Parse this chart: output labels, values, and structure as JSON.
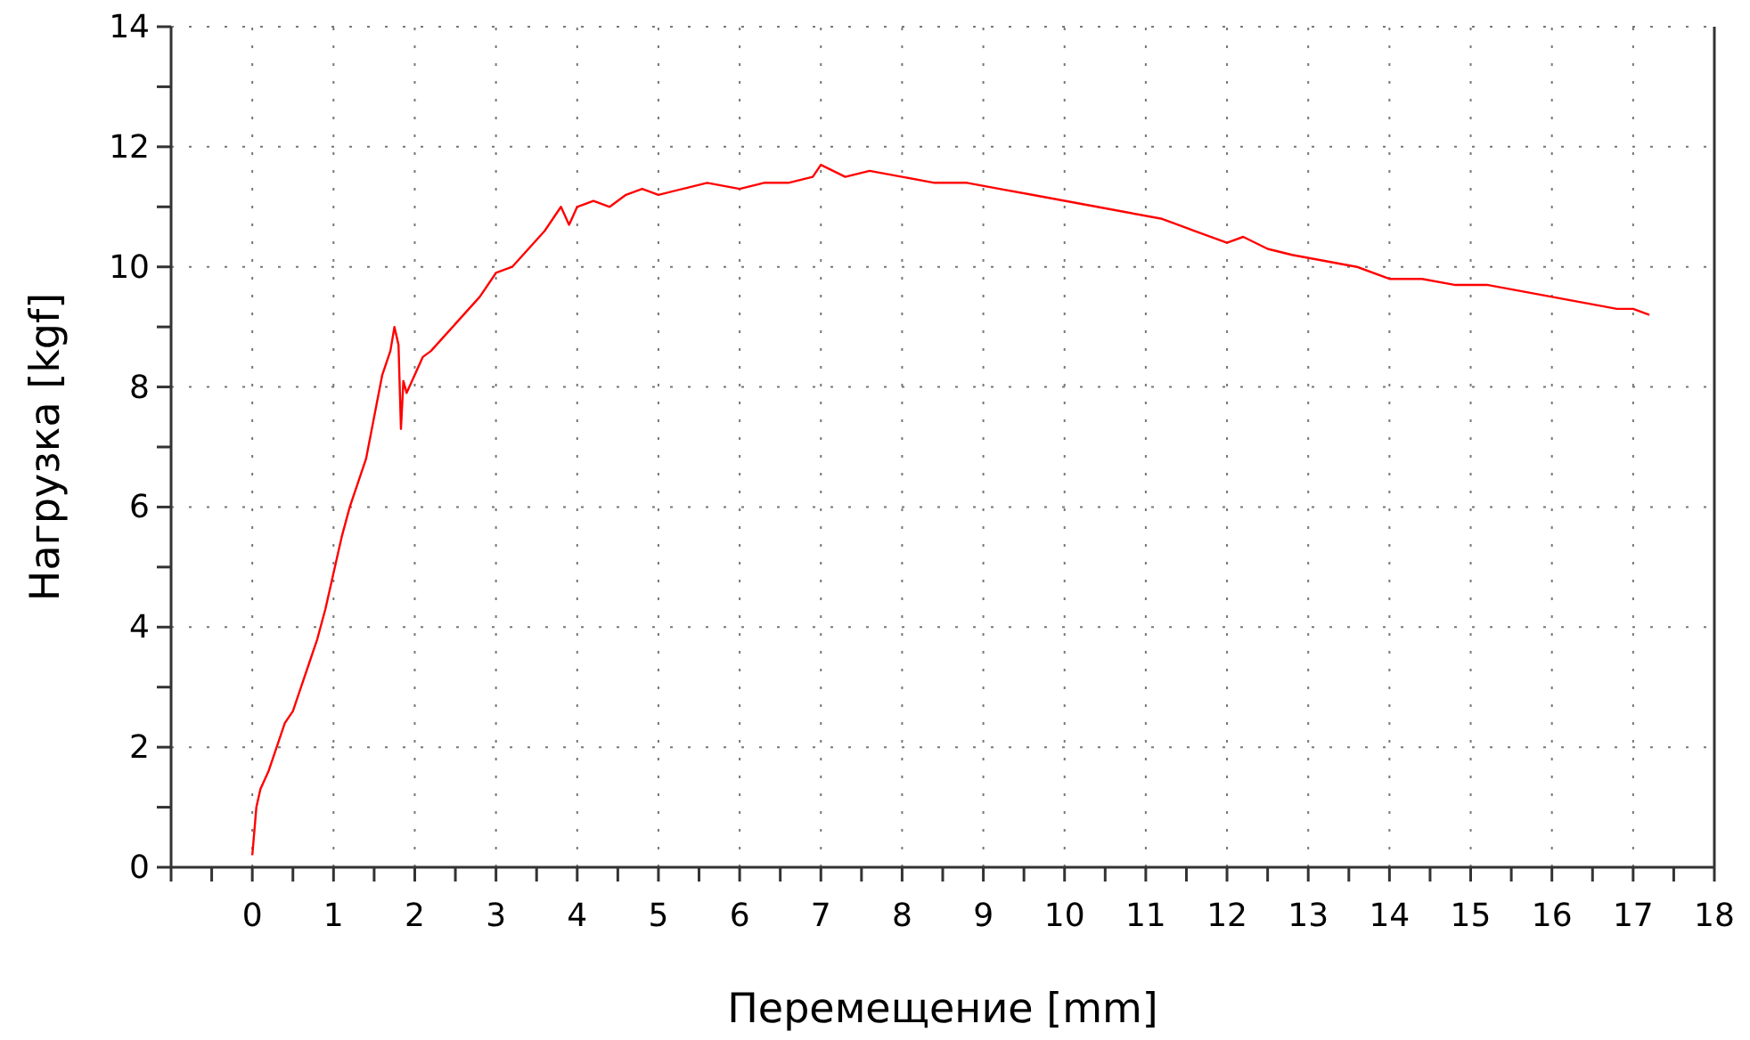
{
  "chart_data": {
    "type": "line",
    "xlabel": "Перемещение [mm]",
    "ylabel": "Нагрузка [kgf]",
    "xlim": [
      -1,
      18
    ],
    "xticks": [
      {
        "value": -1,
        "label": null
      },
      {
        "value": -0.5,
        "label": null
      },
      0,
      {
        "value": 0.5,
        "label": null
      },
      1,
      {
        "value": 1.5,
        "label": null
      },
      2,
      {
        "value": 2.5,
        "label": null
      },
      3,
      {
        "value": 3.5,
        "label": null
      },
      4,
      {
        "value": 4.5,
        "label": null
      },
      5,
      {
        "value": 5.5,
        "label": null
      },
      6,
      {
        "value": 6.5,
        "label": null
      },
      7,
      {
        "value": 7.5,
        "label": null
      },
      8,
      {
        "value": 8.5,
        "label": null
      },
      9,
      {
        "value": 9.5,
        "label": null
      },
      10,
      {
        "value": 10.5,
        "label": null
      },
      11,
      {
        "value": 11.5,
        "label": null
      },
      12,
      {
        "value": 12.5,
        "label": null
      },
      13,
      {
        "value": 13.5,
        "label": null
      },
      14,
      {
        "value": 14.5,
        "label": null
      },
      15,
      {
        "value": 15.5,
        "label": null
      },
      16,
      {
        "value": 16.5,
        "label": null
      },
      17,
      {
        "value": 17.5,
        "label": null
      },
      18
    ],
    "ylim": [
      0,
      14
    ],
    "yticks": [
      0,
      {
        "value": 1,
        "label": null
      },
      2,
      {
        "value": 3,
        "label": null
      },
      4,
      {
        "value": 5,
        "label": null
      },
      6,
      {
        "value": 7,
        "label": null
      },
      8,
      {
        "value": 9,
        "label": null
      },
      10,
      {
        "value": 11,
        "label": null
      },
      12,
      {
        "value": 13,
        "label": null
      },
      14
    ],
    "grid": true,
    "marker": "none",
    "line_style": "solid",
    "series": [
      {
        "color": "#ff0000",
        "x": [
          0,
          0.05,
          0.1,
          0.2,
          0.3,
          0.4,
          0.5,
          0.6,
          0.7,
          0.8,
          0.9,
          1.0,
          1.1,
          1.2,
          1.3,
          1.4,
          1.5,
          1.6,
          1.7,
          1.75,
          1.8,
          1.83,
          1.86,
          1.9,
          2.0,
          2.1,
          2.2,
          2.4,
          2.6,
          2.8,
          3.0,
          3.2,
          3.4,
          3.6,
          3.7,
          3.8,
          3.9,
          4.0,
          4.2,
          4.4,
          4.6,
          4.8,
          5.0,
          5.3,
          5.6,
          6.0,
          6.3,
          6.6,
          6.9,
          7.0,
          7.3,
          7.6,
          8.0,
          8.4,
          8.8,
          9.2,
          9.6,
          10.0,
          10.4,
          10.8,
          11.2,
          11.6,
          12.0,
          12.2,
          12.5,
          12.8,
          13.2,
          13.6,
          14.0,
          14.4,
          14.8,
          15.2,
          15.6,
          16.0,
          16.4,
          16.8,
          17.0,
          17.2
        ],
        "values": [
          0.2,
          1.0,
          1.3,
          1.6,
          2.0,
          2.4,
          2.6,
          3.0,
          3.4,
          3.8,
          4.3,
          4.9,
          5.5,
          6.0,
          6.4,
          6.8,
          7.5,
          8.2,
          8.6,
          9.0,
          8.7,
          7.3,
          8.1,
          7.9,
          8.2,
          8.5,
          8.6,
          8.9,
          9.2,
          9.5,
          9.9,
          10.0,
          10.3,
          10.6,
          10.8,
          11.0,
          10.7,
          11.0,
          11.1,
          11.0,
          11.2,
          11.3,
          11.2,
          11.3,
          11.4,
          11.3,
          11.4,
          11.4,
          11.5,
          11.7,
          11.5,
          11.6,
          11.5,
          11.4,
          11.4,
          11.3,
          11.2,
          11.1,
          11.0,
          10.9,
          10.8,
          10.6,
          10.4,
          10.5,
          10.3,
          10.2,
          10.1,
          10.0,
          9.8,
          9.8,
          9.7,
          9.7,
          9.6,
          9.5,
          9.4,
          9.3,
          9.3,
          9.2
        ]
      }
    ]
  }
}
